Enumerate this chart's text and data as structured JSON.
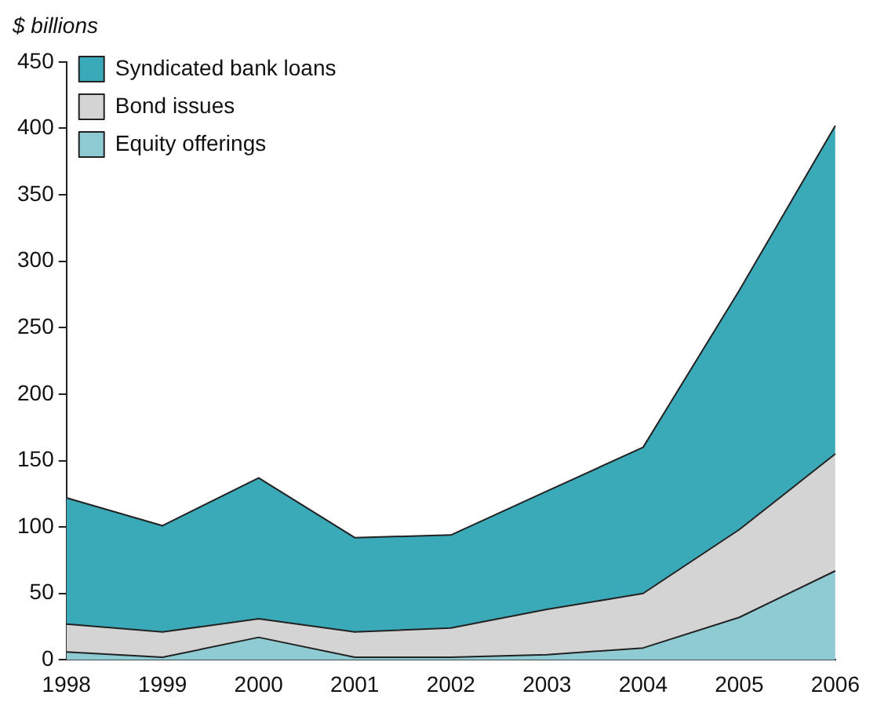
{
  "chart_data": {
    "type": "area",
    "ylabel": "$ billions",
    "categories": [
      "1998",
      "1999",
      "2000",
      "2001",
      "2002",
      "2003",
      "2004",
      "2005",
      "2006"
    ],
    "stacked": true,
    "legend": "top left",
    "ylim": [
      0,
      450
    ],
    "yticks": [
      0,
      50,
      100,
      150,
      200,
      250,
      300,
      350,
      400,
      450
    ],
    "series": [
      {
        "name": "Equity offerings",
        "color": "#8ecbd2",
        "values": [
          6,
          2,
          17,
          2,
          2,
          4,
          9,
          32,
          67
        ]
      },
      {
        "name": "Bond issues",
        "color": "#d4d4d4",
        "values": [
          21,
          19,
          14,
          19,
          22,
          34,
          41,
          66,
          88
        ]
      },
      {
        "name": "Syndicated bank loans",
        "color": "#3aa9b8",
        "values": [
          95,
          80,
          106,
          71,
          70,
          89,
          110,
          180,
          247
        ]
      }
    ]
  }
}
